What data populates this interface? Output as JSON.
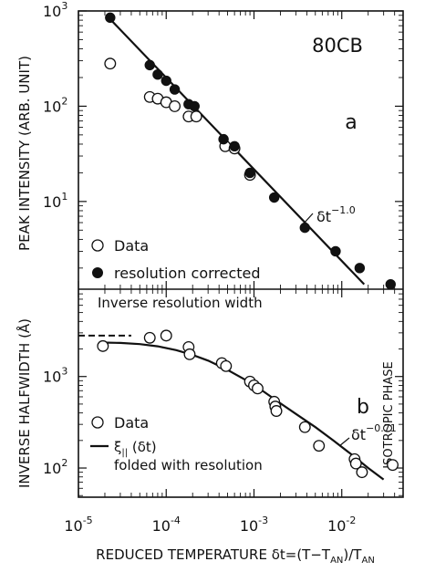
{
  "chart_data": [
    {
      "type": "scatter",
      "panel_label": "a",
      "sample_label": "80CB",
      "ylabel": "PEAK INTENSITY (ARB. UNIT)",
      "xscale": "log",
      "yscale": "log",
      "xlim": [
        1e-05,
        0.05
      ],
      "ylim": [
        1.2,
        1000
      ],
      "y_ticks": [
        {
          "value": 1000,
          "base": "10",
          "exp": "3"
        },
        {
          "value": 100,
          "base": "10",
          "exp": "2"
        },
        {
          "value": 10,
          "base": "10",
          "exp": "1"
        }
      ],
      "series": [
        {
          "name": "Data",
          "marker": "open-circle",
          "x": [
            2.3e-05,
            6.5e-05,
            8e-05,
            0.0001,
            0.000125,
            0.00018,
            0.00022,
            0.00047,
            0.0006,
            0.0009
          ],
          "y": [
            280,
            125,
            120,
            110,
            100,
            78,
            78,
            38,
            36,
            19
          ]
        },
        {
          "name": "resolution corrected",
          "marker": "filled-circle",
          "x": [
            2.3e-05,
            6.5e-05,
            8e-05,
            0.0001,
            0.000125,
            0.00018,
            0.00021,
            0.00045,
            0.0006,
            0.0009,
            0.0017,
            0.0038,
            0.0085,
            0.016,
            0.036
          ],
          "y": [
            850,
            270,
            215,
            185,
            150,
            105,
            100,
            45,
            38,
            20,
            11,
            5.3,
            3.0,
            2.0,
            1.35
          ]
        }
      ],
      "fit_line": {
        "x": [
          2.3e-05,
          0.018
        ],
        "y": [
          820,
          1.35
        ]
      },
      "fit_label": {
        "base": "δt",
        "exp": "−1.0"
      },
      "legend": {
        "placement": "lower-left"
      }
    },
    {
      "type": "scatter",
      "panel_label": "b",
      "ylabel": "INVERSE HALFWIDTH (Å)",
      "xlabel": "REDUCED TEMPERATURE δt=(T−T_AN)/T_AN",
      "xscale": "log",
      "yscale": "log",
      "xlim": [
        1e-05,
        0.05
      ],
      "ylim": [
        48,
        9000
      ],
      "x_ticks": [
        {
          "value": 1e-05,
          "base": "10",
          "exp": "-5"
        },
        {
          "value": 0.0001,
          "base": "10",
          "exp": "-4"
        },
        {
          "value": 0.001,
          "base": "10",
          "exp": "-3"
        },
        {
          "value": 0.01,
          "base": "10",
          "exp": "-2"
        }
      ],
      "y_ticks": [
        {
          "value": 1000,
          "base": "10",
          "exp": "3"
        },
        {
          "value": 100,
          "base": "10",
          "exp": "2"
        }
      ],
      "series": [
        {
          "name": "Data",
          "marker": "open-circle",
          "x": [
            1.9e-05,
            6.5e-05,
            0.0001,
            0.00018,
            0.000185,
            0.00043,
            0.00048,
            0.0009,
            0.001,
            0.0011,
            0.0017,
            0.00175,
            0.0018,
            0.0038,
            0.0055,
            0.014,
            0.0145,
            0.017,
            0.038
          ],
          "y": [
            2150,
            2650,
            2800,
            2100,
            1750,
            1400,
            1300,
            880,
            800,
            740,
            530,
            470,
            420,
            280,
            175,
            125,
            112,
            90,
            108
          ]
        }
      ],
      "fit_curve": {
        "name": "ξ‖(δt) folded with resolution",
        "x": [
          1.9e-05,
          3e-05,
          5e-05,
          8e-05,
          0.00013,
          0.0002,
          0.0003,
          0.0005,
          0.0008,
          0.0013,
          0.002,
          0.003,
          0.005,
          0.008,
          0.013,
          0.02,
          0.03
        ],
        "y": [
          2350,
          2330,
          2260,
          2140,
          1940,
          1720,
          1490,
          1180,
          920,
          680,
          510,
          390,
          280,
          200,
          140,
          100,
          75
        ]
      },
      "reference_line": {
        "label": "Inverse resolution width",
        "x": [
          1e-05,
          4e-05
        ],
        "y": 2800
      },
      "fit_label": {
        "base": "δt",
        "exp": "−0.71"
      },
      "side_label": "ISOTROPIC PHASE",
      "legend": {
        "placement": "lower-left"
      }
    }
  ]
}
